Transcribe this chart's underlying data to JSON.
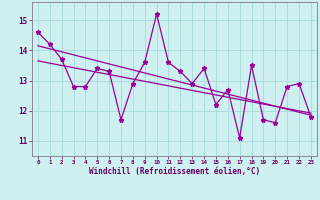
{
  "xlabel": "Windchill (Refroidissement éolien,°C)",
  "background_color": "#cff0f0",
  "line_color": "#990099",
  "grid_color": "#aadddd",
  "axis_color": "#888899",
  "text_color": "#660066",
  "x_hours": [
    0,
    1,
    2,
    3,
    4,
    5,
    6,
    7,
    8,
    9,
    10,
    11,
    12,
    13,
    14,
    15,
    16,
    17,
    18,
    19,
    20,
    21,
    22,
    23
  ],
  "y_data": [
    14.6,
    14.2,
    13.7,
    12.8,
    12.8,
    13.4,
    13.3,
    11.7,
    12.9,
    13.6,
    15.2,
    13.6,
    13.3,
    12.9,
    13.4,
    12.2,
    12.7,
    11.1,
    13.5,
    11.7,
    11.6,
    12.8,
    12.9,
    11.8
  ],
  "trend1_start": 14.15,
  "trend1_end": 11.85,
  "trend2_start": 13.65,
  "trend2_end": 11.92,
  "ylim": [
    10.5,
    15.6
  ],
  "xlim": [
    -0.5,
    23.5
  ],
  "yticks": [
    11,
    12,
    13,
    14,
    15
  ],
  "xticks": [
    0,
    1,
    2,
    3,
    4,
    5,
    6,
    7,
    8,
    9,
    10,
    11,
    12,
    13,
    14,
    15,
    16,
    17,
    18,
    19,
    20,
    21,
    22,
    23
  ]
}
